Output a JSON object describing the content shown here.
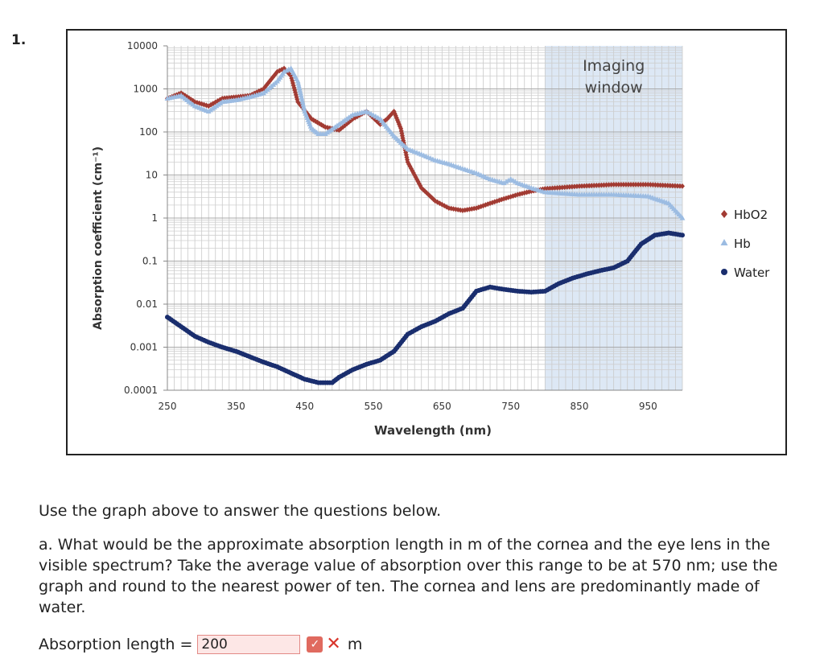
{
  "question_number": "1.",
  "chart_data": {
    "type": "scatter",
    "xlabel": "Wavelength (nm)",
    "ylabel": "Absorption coefficient (cm⁻¹)",
    "xlim": [
      250,
      1000
    ],
    "ylim": [
      0.0001,
      10000
    ],
    "yscale": "log",
    "x_ticks": [
      "250",
      "350",
      "450",
      "550",
      "650",
      "750",
      "850",
      "950"
    ],
    "y_ticks": [
      "10000",
      "1000",
      "100",
      "10",
      "1",
      "0.1",
      "0.01",
      "0.001",
      "0.0001"
    ],
    "annotation": "Imaging\nwindow",
    "imaging_window": [
      800,
      1000
    ],
    "legend_position": "right",
    "series": [
      {
        "name": "HbO2",
        "color": "#a23b33",
        "marker": "diamond",
        "x": [
          250,
          270,
          290,
          310,
          330,
          350,
          370,
          390,
          410,
          420,
          430,
          440,
          460,
          480,
          500,
          520,
          540,
          560,
          570,
          580,
          590,
          600,
          620,
          640,
          660,
          680,
          700,
          720,
          740,
          760,
          780,
          800,
          850,
          900,
          950,
          1000
        ],
        "y": [
          600,
          800,
          500,
          400,
          600,
          650,
          700,
          1000,
          2500,
          3000,
          2000,
          500,
          200,
          130,
          110,
          200,
          300,
          150,
          200,
          300,
          120,
          20,
          5,
          2.5,
          1.7,
          1.5,
          1.7,
          2.2,
          2.8,
          3.5,
          4.2,
          4.8,
          5.5,
          6,
          6,
          5.5
        ]
      },
      {
        "name": "Hb",
        "color": "#9cbce2",
        "marker": "triangle",
        "x": [
          250,
          270,
          290,
          310,
          330,
          350,
          370,
          390,
          410,
          420,
          430,
          440,
          450,
          460,
          470,
          480,
          500,
          520,
          540,
          560,
          580,
          600,
          620,
          640,
          660,
          680,
          700,
          720,
          740,
          750,
          760,
          780,
          800,
          850,
          900,
          950,
          980,
          1000
        ],
        "y": [
          600,
          700,
          400,
          300,
          500,
          550,
          650,
          800,
          1500,
          2500,
          3000,
          1500,
          300,
          120,
          90,
          90,
          150,
          250,
          300,
          200,
          80,
          40,
          30,
          22,
          18,
          14,
          11,
          8,
          6.5,
          8,
          6.5,
          5,
          4,
          3.5,
          3.5,
          3.2,
          2.2,
          1.0
        ]
      },
      {
        "name": "Water",
        "color": "#1a2e6e",
        "marker": "circle",
        "x": [
          250,
          270,
          290,
          310,
          330,
          350,
          370,
          390,
          410,
          430,
          450,
          470,
          490,
          500,
          520,
          540,
          560,
          580,
          600,
          620,
          640,
          660,
          680,
          700,
          720,
          740,
          760,
          780,
          800,
          820,
          840,
          860,
          880,
          900,
          920,
          940,
          960,
          980,
          1000
        ],
        "y": [
          0.005,
          0.003,
          0.0018,
          0.0013,
          0.001,
          0.0008,
          0.0006,
          0.00045,
          0.00035,
          0.00025,
          0.00018,
          0.00015,
          0.00015,
          0.0002,
          0.0003,
          0.0004,
          0.0005,
          0.0008,
          0.002,
          0.003,
          0.004,
          0.006,
          0.008,
          0.02,
          0.025,
          0.022,
          0.02,
          0.019,
          0.02,
          0.03,
          0.04,
          0.05,
          0.06,
          0.07,
          0.1,
          0.25,
          0.4,
          0.45,
          0.4
        ]
      }
    ]
  },
  "text": {
    "prompt": "Use the graph above to answer the questions below.",
    "question_a": "a. What would be the approximate absorption length in m of the cornea and the eye lens in the visible spectrum? Take the average value of absorption over this range to be at 570 nm; use the graph and round to the nearest power of ten. The cornea and lens are predominantly made of water.",
    "answer_label": "Absorption length =",
    "answer_value": "200",
    "unit": "m"
  },
  "colors": {
    "hbo2": "#a23b33",
    "hb": "#9cbce2",
    "water": "#1a2e6e",
    "window_fill": "#dde8f5",
    "incorrect": "#d8342a"
  }
}
